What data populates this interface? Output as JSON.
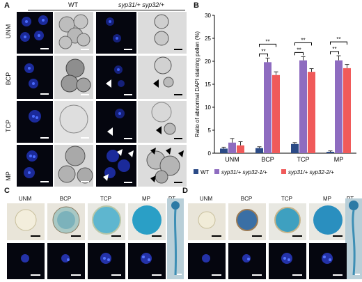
{
  "panelA": {
    "letter": "A",
    "group_wt": "WT",
    "group_mut": "syp31/+ syp32/+",
    "rows": [
      "UNM",
      "BCP",
      "TCP",
      "MP"
    ]
  },
  "panelB": {
    "letter": "B"
  },
  "chart_data": {
    "type": "bar",
    "categories": [
      "UNM",
      "BCP",
      "TCP",
      "MP"
    ],
    "series": [
      {
        "name": "WT",
        "color": "#2b4a86",
        "values": [
          1.0,
          1.1,
          2.0,
          0.3
        ],
        "errors": [
          0.3,
          0.3,
          0.3,
          0.2
        ]
      },
      {
        "name": "syp31/+ syp32-1/+",
        "color": "#8e6cc0",
        "values": [
          2.3,
          19.8,
          20.2,
          20.2
        ],
        "errors": [
          0.9,
          0.9,
          0.8,
          1.0
        ]
      },
      {
        "name": "syp31/+ syp32-2/+",
        "color": "#f05a5a",
        "values": [
          1.7,
          17.0,
          17.7,
          18.5
        ],
        "errors": [
          0.8,
          0.7,
          0.7,
          0.8
        ]
      }
    ],
    "ylabel": "Ratio of abnormal DAPI staining pollen (%)",
    "ylim": [
      0,
      30
    ],
    "yticks": [
      0,
      5,
      10,
      15,
      20,
      25,
      30
    ],
    "significance": "**"
  },
  "panelC": {
    "letter": "C",
    "labels": [
      "UNM",
      "BCP",
      "TCP",
      "MP",
      "PT"
    ]
  },
  "panelD": {
    "letter": "D",
    "labels": [
      "UNM",
      "BCP",
      "TCP",
      "MP",
      "PT"
    ]
  }
}
